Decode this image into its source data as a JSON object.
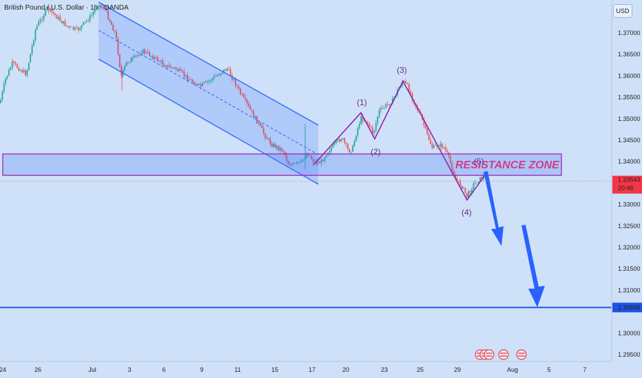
{
  "header": {
    "symbol": "British Pound / U.S. Dollar · 1h · OANDA",
    "currency": "USD"
  },
  "chart_data": {
    "type": "candlestick",
    "y_ticks": [
      "1.37000",
      "1.36500",
      "1.36000",
      "1.35500",
      "1.35000",
      "1.34500",
      "1.34000",
      "1.33000",
      "1.32500",
      "1.32000",
      "1.31500",
      "1.31000",
      "1.30000",
      "1.29500"
    ],
    "y_tick_values": [
      1.37,
      1.365,
      1.36,
      1.355,
      1.35,
      1.345,
      1.34,
      1.33,
      1.325,
      1.32,
      1.315,
      1.31,
      1.3,
      1.295
    ],
    "ylim": [
      1.2925,
      1.3755
    ],
    "x_ticks": [
      "24",
      "26",
      "Jul",
      "3",
      "6",
      "9",
      "11",
      "15",
      "17",
      "20",
      "23",
      "25",
      "29",
      "Aug",
      "5",
      "7"
    ],
    "current_price": {
      "value": "1.33543",
      "countdown": "20:46",
      "level": 1.33543
    },
    "target": {
      "value": "1.30599",
      "level": 1.30599
    },
    "resistance_zone": {
      "label": "RESISTANCE ZONE",
      "low": 1.3368,
      "high": 1.3418
    },
    "wave_labels": [
      "(1)",
      "(2)",
      "(3)",
      "(4)",
      "(5)"
    ],
    "colors": {
      "up": "#26a69a",
      "down": "#ef5350",
      "channel": "#2962ff",
      "zone": "#9c27b0",
      "target_line": "#1e53e5",
      "wave": "#6a2a88"
    }
  }
}
